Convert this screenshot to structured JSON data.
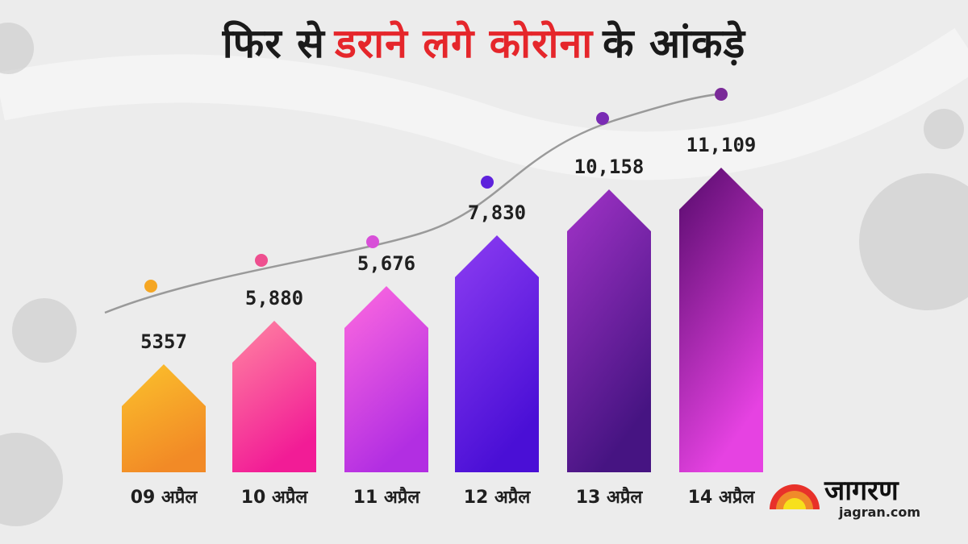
{
  "title": {
    "part1": "फिर से",
    "part2": "डराने लगे कोरोना",
    "part3": "के आंकड़े",
    "accent_color": "#e5262b",
    "text_color": "#1a1a1a"
  },
  "logo": {
    "name": "जागरण",
    "url": "jagran.com"
  },
  "chart_data": {
    "type": "bar",
    "title": "फिर से डराने लगे कोरोना के आंकड़े",
    "categories": [
      "09 अप्रैल",
      "10 अप्रैल",
      "11 अप्रैल",
      "12 अप्रैल",
      "13 अप्रैल",
      "14 अप्रैल"
    ],
    "values": [
      5357,
      5880,
      5676,
      7830,
      10158,
      11109
    ],
    "value_labels": [
      "5357",
      "5,880",
      "5,676",
      "7,830",
      "10,158",
      "11,109"
    ],
    "xlabel": "",
    "ylabel": "",
    "grid": false,
    "bar_colors": [
      [
        "#fbc22c",
        "#f28a26"
      ],
      [
        "#ff86a2",
        "#f21c96"
      ],
      [
        "#ff6ae0",
        "#b22ee2"
      ],
      [
        "#8d3df2",
        "#4a0fd6"
      ],
      [
        "#a233c8",
        "#461482"
      ],
      [
        "#560a6c",
        "#e642e2"
      ]
    ],
    "dot_colors": [
      "#f5a623",
      "#ee4f8f",
      "#d850d8",
      "#5e22dc",
      "#7a2bb4",
      "#7a2a98"
    ]
  }
}
